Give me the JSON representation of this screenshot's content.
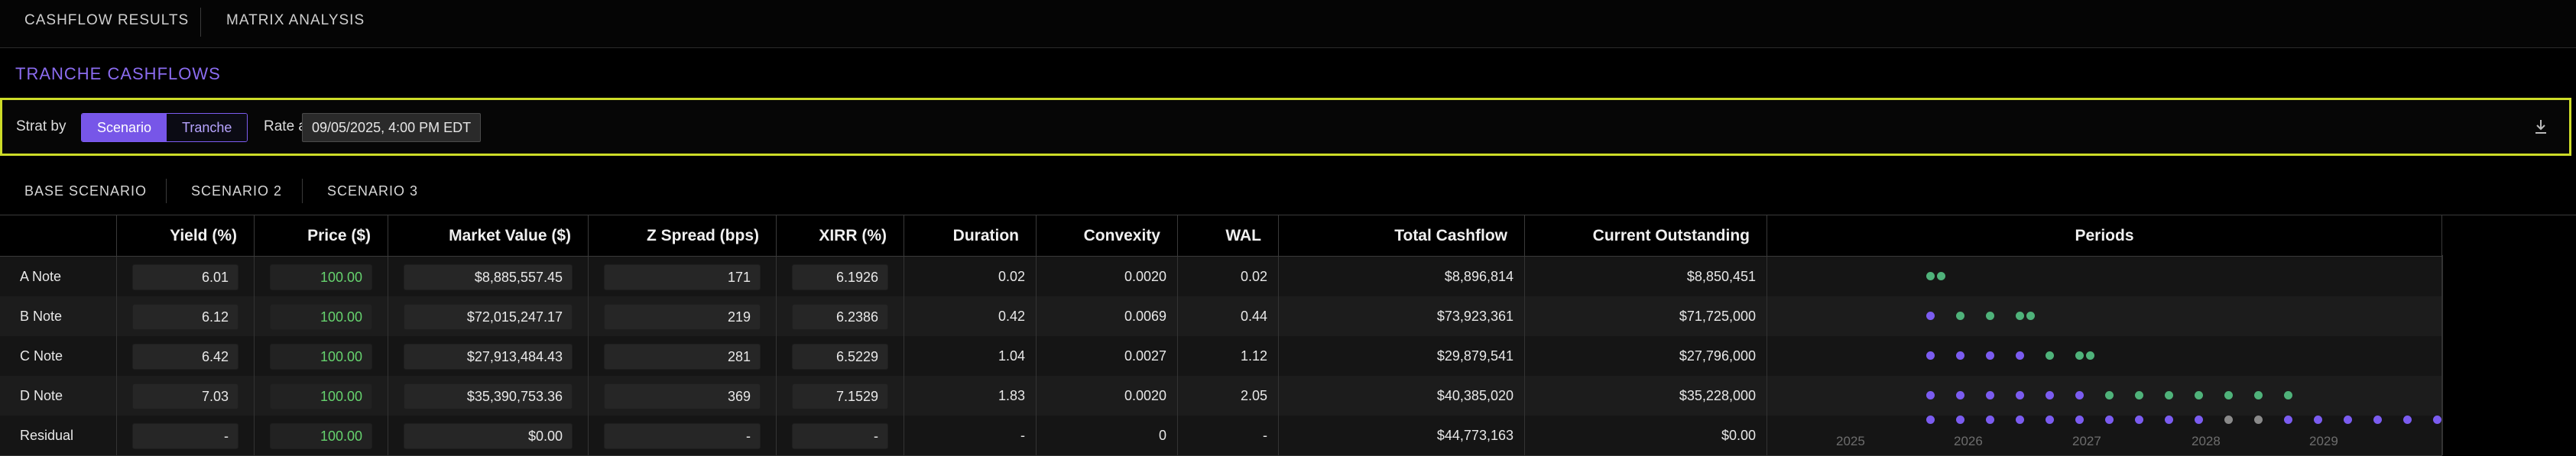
{
  "topnav": {
    "tabs": [
      "CASHFLOW RESULTS",
      "MATRIX ANALYSIS"
    ]
  },
  "section_title": "TRANCHE CASHFLOWS",
  "toolbar": {
    "strat_label": "Strat by",
    "strat_options": [
      "Scenario",
      "Tranche"
    ],
    "strat_selected": "Scenario",
    "rate_label": "Rate as of:",
    "rate_value": "09/05/2025, 4:00 PM EDT",
    "download_icon": "download-icon"
  },
  "scenario_tabs": [
    "BASE SCENARIO",
    "SCENARIO 2",
    "SCENARIO 3"
  ],
  "table": {
    "columns": [
      "",
      "Yield (%)",
      "Price ($)",
      "Market Value ($)",
      "Z Spread (bps)",
      "XIRR (%)",
      "Duration",
      "Convexity",
      "WAL",
      "Total Cashflow",
      "Current Outstanding",
      "Periods"
    ],
    "rows": [
      {
        "name": "A Note",
        "yield": "6.01",
        "price": "100.00",
        "market_value": "$8,885,557.45",
        "z_spread": "171",
        "xirr": "6.1926",
        "duration": "0.02",
        "convexity": "0.0020",
        "wal": "0.02",
        "total_cashflow": "$8,896,814",
        "current_outstanding": "$8,850,451"
      },
      {
        "name": "B Note",
        "yield": "6.12",
        "price": "100.00",
        "market_value": "$72,015,247.17",
        "z_spread": "219",
        "xirr": "6.2386",
        "duration": "0.42",
        "convexity": "0.0069",
        "wal": "0.44",
        "total_cashflow": "$73,923,361",
        "current_outstanding": "$71,725,000"
      },
      {
        "name": "C Note",
        "yield": "6.42",
        "price": "100.00",
        "market_value": "$27,913,484.43",
        "z_spread": "281",
        "xirr": "6.5229",
        "duration": "1.04",
        "convexity": "0.0027",
        "wal": "1.12",
        "total_cashflow": "$29,879,541",
        "current_outstanding": "$27,796,000"
      },
      {
        "name": "D Note",
        "yield": "7.03",
        "price": "100.00",
        "market_value": "$35,390,753.36",
        "z_spread": "369",
        "xirr": "7.1529",
        "duration": "1.83",
        "convexity": "0.0020",
        "wal": "2.05",
        "total_cashflow": "$40,385,020",
        "current_outstanding": "$35,228,000"
      },
      {
        "name": "Residual",
        "yield": "-",
        "price": "100.00",
        "market_value": "$0.00",
        "z_spread": "-",
        "xirr": "-",
        "duration": "-",
        "convexity": "0",
        "wal": "-",
        "total_cashflow": "$44,773,163",
        "current_outstanding": "$0.00"
      }
    ],
    "period_years": [
      "2025",
      "2026",
      "2027",
      "2028",
      "2029"
    ],
    "period_dot_colors": {
      "interest": "#7b5cf0",
      "principal": "#4fb27a",
      "other": "#8a8a8a"
    },
    "period_dots": [
      [
        "g",
        "g"
      ],
      [
        "p",
        "g",
        "g",
        "g",
        "g"
      ],
      [
        "p",
        "p",
        "p",
        "p",
        "g",
        "g",
        "g"
      ],
      [
        "p",
        "p",
        "p",
        "p",
        "p",
        "p",
        "g",
        "g",
        "g",
        "g",
        "g",
        "g",
        "g"
      ],
      [
        "p",
        "p",
        "p",
        "p",
        "p",
        "p",
        "p",
        "p",
        "p",
        "p",
        "o",
        "o",
        "p",
        "p",
        "p",
        "p",
        "p",
        "p"
      ]
    ]
  }
}
